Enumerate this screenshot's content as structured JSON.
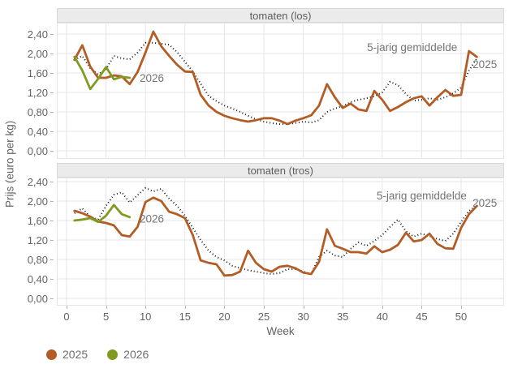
{
  "y_axis_label": "Prijs (euro per kg)",
  "x_axis_label": "Week",
  "legend": [
    {
      "label": "2025",
      "color": "#b25d25"
    },
    {
      "label": "2026",
      "color": "#7f9b20"
    }
  ],
  "colors": {
    "series_2025": "#b25d25",
    "series_2026": "#7f9b20",
    "series_avg": "#1a1a1a",
    "gridline": "#e6e6e6",
    "facet_header_bg": "#ebebeb",
    "tick_text": "#636363",
    "annotation_text": "#747474"
  },
  "chart_data": [
    {
      "type": "line",
      "title": "tomaten (los)",
      "xlabel": "Week",
      "ylabel": "Prijs (euro per kg)",
      "x_first": 1,
      "xlim": [
        0,
        54
      ],
      "ylim": [
        0,
        2.6
      ],
      "grid": true,
      "x_ticks": [
        0,
        5,
        10,
        15,
        20,
        25,
        30,
        35,
        40,
        45,
        50
      ],
      "y_ticks": [
        {
          "v": 0.0,
          "label": "0,00"
        },
        {
          "v": 0.4,
          "label": "0,40"
        },
        {
          "v": 0.8,
          "label": "0,80"
        },
        {
          "v": 1.2,
          "label": "1,20"
        },
        {
          "v": 1.6,
          "label": "1,60"
        },
        {
          "v": 2.0,
          "label": "2,00"
        },
        {
          "v": 2.4,
          "label": "2,40"
        }
      ],
      "series": [
        {
          "name": "5-jarig gemiddelde",
          "color": "#1a1a1a",
          "dotted": true,
          "values": [
            1.87,
            1.95,
            1.7,
            1.57,
            1.68,
            1.95,
            1.9,
            1.88,
            2.02,
            2.22,
            2.22,
            2.2,
            2.18,
            2.03,
            1.83,
            1.63,
            1.38,
            1.13,
            1.02,
            0.93,
            0.87,
            0.8,
            0.72,
            0.65,
            0.6,
            0.57,
            0.55,
            0.55,
            0.57,
            0.6,
            0.58,
            0.63,
            0.8,
            0.87,
            0.92,
            1.0,
            1.05,
            1.08,
            1.12,
            1.2,
            1.42,
            1.35,
            1.17,
            1.03,
            1.05,
            1.08,
            1.05,
            1.1,
            1.18,
            1.3,
            1.65,
            1.9
          ]
        },
        {
          "name": "2025",
          "color": "#b25d25",
          "dotted": false,
          "values": [
            1.87,
            2.17,
            1.73,
            1.5,
            1.5,
            1.55,
            1.53,
            1.37,
            1.62,
            2.02,
            2.45,
            2.15,
            1.95,
            1.77,
            1.63,
            1.62,
            1.15,
            0.93,
            0.8,
            0.72,
            0.67,
            0.63,
            0.6,
            0.63,
            0.67,
            0.67,
            0.62,
            0.55,
            0.62,
            0.67,
            0.73,
            0.93,
            1.37,
            1.1,
            0.88,
            0.97,
            0.85,
            0.82,
            1.23,
            1.05,
            0.82,
            0.9,
            1.0,
            1.08,
            1.12,
            0.93,
            1.1,
            1.25,
            1.13,
            1.15,
            2.05,
            1.93
          ]
        },
        {
          "name": "2026",
          "color": "#7f9b20",
          "dotted": false,
          "values": [
            1.93,
            1.65,
            1.27,
            1.48,
            1.72,
            1.47,
            1.52,
            1.5
          ]
        }
      ],
      "annotations": [
        {
          "text": "2026",
          "x": 10.8,
          "y": 1.5
        },
        {
          "text": "5-jarig gemiddelde",
          "x": 43.8,
          "y": 2.13
        },
        {
          "text": "2025",
          "x": 53.0,
          "y": 1.78
        }
      ]
    },
    {
      "type": "line",
      "title": "tomaten (tros)",
      "xlabel": "Week",
      "ylabel": "Prijs (euro per kg)",
      "x_first": 1,
      "xlim": [
        0,
        54
      ],
      "ylim": [
        0,
        2.6
      ],
      "grid": true,
      "x_ticks": [
        0,
        5,
        10,
        15,
        20,
        25,
        30,
        35,
        40,
        45,
        50
      ],
      "y_ticks": [
        {
          "v": 0.0,
          "label": "0,00"
        },
        {
          "v": 0.4,
          "label": "0,40"
        },
        {
          "v": 0.8,
          "label": "0,80"
        },
        {
          "v": 1.2,
          "label": "1,20"
        },
        {
          "v": 1.6,
          "label": "1,60"
        },
        {
          "v": 2.0,
          "label": "2,00"
        },
        {
          "v": 2.4,
          "label": "2,40"
        }
      ],
      "series": [
        {
          "name": "5-jarig gemiddelde",
          "color": "#1a1a1a",
          "dotted": true,
          "values": [
            1.75,
            1.85,
            1.68,
            1.62,
            1.9,
            2.13,
            2.18,
            1.97,
            2.12,
            2.27,
            2.2,
            2.25,
            2.05,
            1.9,
            1.7,
            1.45,
            1.2,
            0.98,
            0.85,
            0.78,
            0.67,
            0.62,
            0.58,
            0.55,
            0.52,
            0.5,
            0.52,
            0.6,
            0.6,
            0.55,
            0.5,
            0.85,
            0.98,
            0.88,
            0.85,
            1.02,
            1.15,
            1.08,
            1.18,
            1.3,
            1.47,
            1.62,
            1.38,
            1.27,
            1.33,
            1.28,
            1.22,
            1.18,
            1.33,
            1.57,
            1.8,
            1.9
          ]
        },
        {
          "name": "2025",
          "color": "#b25d25",
          "dotted": false,
          "values": [
            1.8,
            1.75,
            1.68,
            1.58,
            1.55,
            1.5,
            1.3,
            1.27,
            1.47,
            1.98,
            2.07,
            2.0,
            1.78,
            1.73,
            1.65,
            1.3,
            0.78,
            0.73,
            0.7,
            0.47,
            0.48,
            0.55,
            0.98,
            0.73,
            0.6,
            0.55,
            0.65,
            0.67,
            0.62,
            0.53,
            0.5,
            0.75,
            1.42,
            1.08,
            1.02,
            0.95,
            0.95,
            0.92,
            1.07,
            0.95,
            1.0,
            1.1,
            1.35,
            1.17,
            1.2,
            1.33,
            1.12,
            1.03,
            1.02,
            1.45,
            1.73,
            1.9
          ]
        },
        {
          "name": "2026",
          "color": "#7f9b20",
          "dotted": false,
          "values": [
            1.6,
            1.62,
            1.65,
            1.57,
            1.7,
            1.92,
            1.73,
            1.67
          ]
        }
      ],
      "annotations": [
        {
          "text": "2026",
          "x": 10.8,
          "y": 1.64
        },
        {
          "text": "5-jarig gemiddelde",
          "x": 45.0,
          "y": 2.12
        },
        {
          "text": "2025",
          "x": 53.0,
          "y": 1.97
        }
      ]
    }
  ]
}
